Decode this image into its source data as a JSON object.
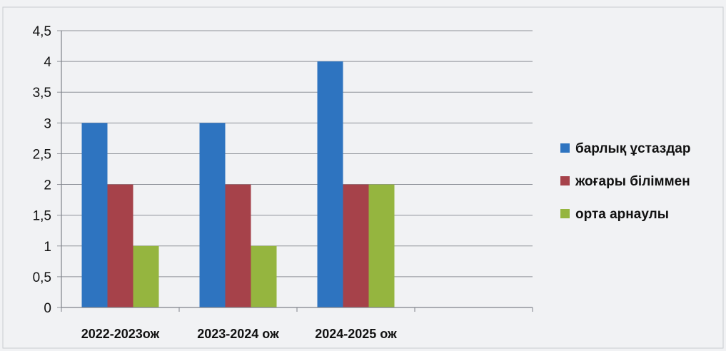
{
  "chart_data": {
    "type": "bar",
    "title": "",
    "xlabel": "",
    "ylabel": "",
    "categories": [
      "2022-2023ож",
      "2023-2024 ож",
      "2024-2025 ож"
    ],
    "series": [
      {
        "name": "барлық ұстаздар",
        "values": [
          3,
          3,
          4
        ],
        "color": "#2e74c0"
      },
      {
        "name": "жоғары біліммен",
        "values": [
          2,
          2,
          2
        ],
        "color": "#a6424a"
      },
      {
        "name": "орта арнаулы",
        "values": [
          1,
          1,
          2
        ],
        "color": "#95b53f"
      }
    ],
    "ylim": [
      0,
      4.5
    ],
    "yticks": [
      "0",
      "0,5",
      "1",
      "1,5",
      "2",
      "2,5",
      "3",
      "3,5",
      "4",
      "4,5"
    ],
    "grid": true,
    "legend": "right",
    "empty_trailing_category": true
  }
}
